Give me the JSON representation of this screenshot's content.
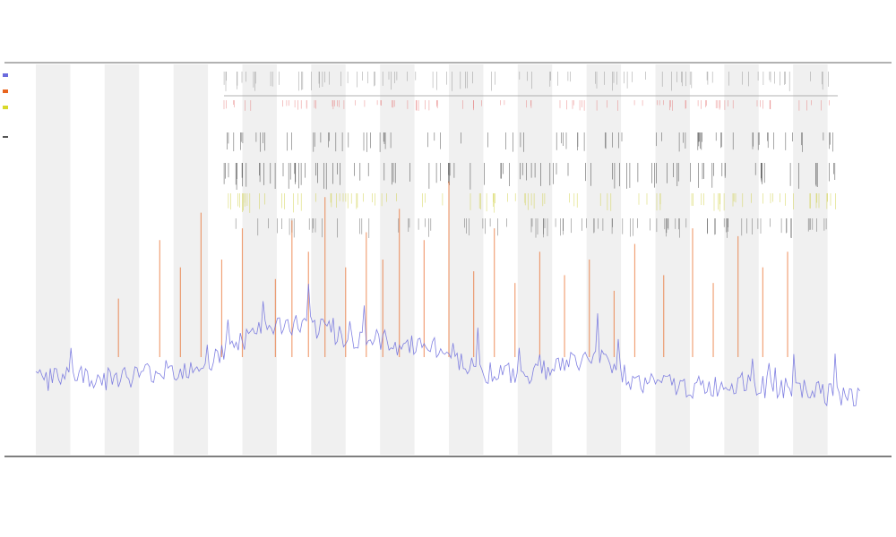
{
  "chart_data": {
    "type": "line",
    "title": "",
    "subtitle_1": "",
    "subtitle_2": "",
    "xlabel": "",
    "ylabel": "",
    "legend": {
      "placement": "top-left",
      "entries": [
        {
          "name": "",
          "color": "#6b6bdd"
        },
        {
          "name": "",
          "color": "#e8641e"
        },
        {
          "name": "",
          "color": "#d9d92a"
        },
        {
          "name": "",
          "color": "#555555"
        }
      ]
    },
    "grid": true,
    "band_count": 24,
    "xlim": [
      0,
      1000
    ],
    "ylim": [
      0,
      100
    ],
    "series": [
      {
        "name": "",
        "color": "#6b6bdd",
        "x": [
          0,
          20,
          40,
          60,
          80,
          100,
          120,
          140,
          160,
          180,
          200,
          220,
          240,
          260,
          280,
          300,
          320,
          340,
          360,
          380,
          400,
          420,
          440,
          460,
          480,
          500,
          520,
          540,
          560,
          580,
          600,
          620,
          640,
          660,
          680,
          700,
          720,
          740,
          760,
          780,
          800,
          820,
          840,
          860,
          880,
          900,
          920,
          940,
          960,
          980,
          1000
        ],
        "values": [
          18,
          18,
          19,
          19,
          18,
          19,
          19,
          20,
          20,
          21,
          22,
          24,
          27,
          29,
          31,
          32,
          32,
          31,
          30,
          29,
          28,
          28,
          27,
          27,
          26,
          25,
          22,
          20,
          20,
          19,
          20,
          21,
          22,
          23,
          24,
          22,
          18,
          17,
          17,
          16,
          16,
          16,
          17,
          17,
          16,
          16,
          15,
          15,
          14,
          14,
          14
        ]
      },
      {
        "name": "",
        "color": "#e8641e",
        "x": [
          100,
          150,
          175,
          200,
          225,
          250,
          290,
          310,
          330,
          350,
          375,
          400,
          420,
          440,
          470,
          500,
          530,
          555,
          580,
          610,
          640,
          670,
          700,
          725,
          760,
          795,
          820,
          850,
          880,
          910
        ],
        "values": [
          40,
          55,
          48,
          62,
          50,
          58,
          45,
          60,
          52,
          66,
          48,
          57,
          50,
          63,
          55,
          70,
          47,
          58,
          44,
          52,
          46,
          50,
          42,
          54,
          46,
          58,
          44,
          56,
          48,
          52
        ]
      }
    ],
    "x_tick_labels": []
  }
}
